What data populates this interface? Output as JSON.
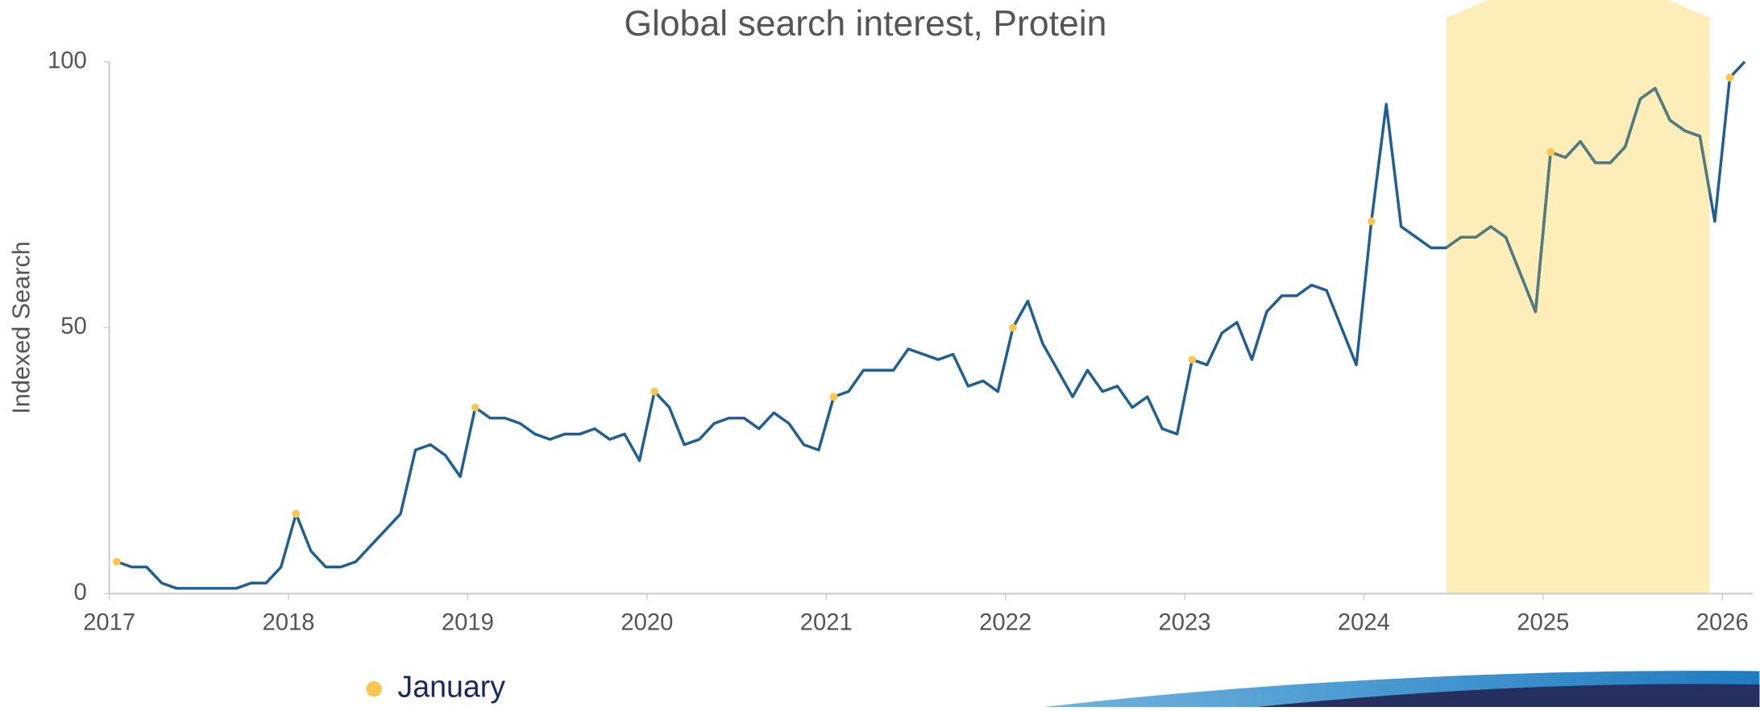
{
  "chart_data": {
    "type": "line",
    "title": "Global search interest, Protein",
    "y_label": "Indexed Search",
    "x": [
      2017.042,
      2017.125,
      2017.208,
      2017.292,
      2017.375,
      2017.458,
      2017.542,
      2017.625,
      2017.708,
      2017.792,
      2017.875,
      2017.958,
      2018.042,
      2018.125,
      2018.208,
      2018.292,
      2018.375,
      2018.458,
      2018.542,
      2018.625,
      2018.708,
      2018.792,
      2018.875,
      2018.958,
      2019.042,
      2019.125,
      2019.208,
      2019.292,
      2019.375,
      2019.458,
      2019.542,
      2019.625,
      2019.708,
      2019.792,
      2019.875,
      2019.958,
      2020.042,
      2020.125,
      2020.208,
      2020.292,
      2020.375,
      2020.458,
      2020.542,
      2020.625,
      2020.708,
      2020.792,
      2020.875,
      2020.958,
      2021.042,
      2021.125,
      2021.208,
      2021.292,
      2021.375,
      2021.458,
      2021.542,
      2021.625,
      2021.708,
      2021.792,
      2021.875,
      2021.958,
      2022.042,
      2022.125,
      2022.208,
      2022.292,
      2022.375,
      2022.458,
      2022.542,
      2022.625,
      2022.708,
      2022.792,
      2022.875,
      2022.958,
      2023.042,
      2023.125,
      2023.208,
      2023.292,
      2023.375,
      2023.458,
      2023.542,
      2023.625,
      2023.708,
      2023.792,
      2023.875,
      2023.958,
      2024.042,
      2024.125,
      2024.208,
      2024.292,
      2024.375,
      2024.458,
      2024.542,
      2024.625,
      2024.708,
      2024.792,
      2024.875,
      2024.958,
      2025.042,
      2025.125,
      2025.208,
      2025.292,
      2025.375,
      2025.458,
      2025.542,
      2025.625,
      2025.708,
      2025.792,
      2025.875,
      2025.958,
      2026.042,
      2026.125
    ],
    "series": [
      {
        "name": "Protein",
        "color": "#1f5f93",
        "values": [
          6,
          5,
          5,
          2,
          1,
          1,
          1,
          1,
          1,
          2,
          2,
          5,
          15,
          8,
          5,
          5,
          6,
          9,
          12,
          15,
          27,
          28,
          26,
          22,
          35,
          33,
          33,
          32,
          30,
          29,
          30,
          30,
          31,
          29,
          30,
          25,
          38,
          35,
          28,
          29,
          32,
          33,
          33,
          31,
          34,
          32,
          28,
          27,
          37,
          38,
          42,
          42,
          42,
          46,
          45,
          44,
          45,
          39,
          40,
          38,
          50,
          55,
          47,
          42,
          37,
          42,
          38,
          39,
          35,
          37,
          31,
          30,
          44,
          43,
          49,
          51,
          44,
          53,
          56,
          56,
          58,
          57,
          50,
          43,
          70,
          92,
          69,
          67,
          65,
          65,
          67,
          67,
          69,
          67,
          60,
          53,
          83,
          82,
          85,
          81,
          81,
          84,
          93,
          95,
          89,
          87,
          86,
          70,
          97,
          100
        ]
      }
    ],
    "markers": {
      "name": "January",
      "color": "#f9c74f"
    },
    "highlight": {
      "range": [
        2024.46,
        2025.93
      ],
      "color": "#fdedb9",
      "line_color": "#517b7e"
    },
    "xlim": [
      2017,
      2026.17
    ],
    "xticks": [
      2017,
      2018,
      2019,
      2020,
      2021,
      2022,
      2023,
      2024,
      2025,
      2026
    ],
    "ylim": [
      0,
      100
    ],
    "yticks": [
      0,
      50,
      100
    ],
    "grid": false
  }
}
